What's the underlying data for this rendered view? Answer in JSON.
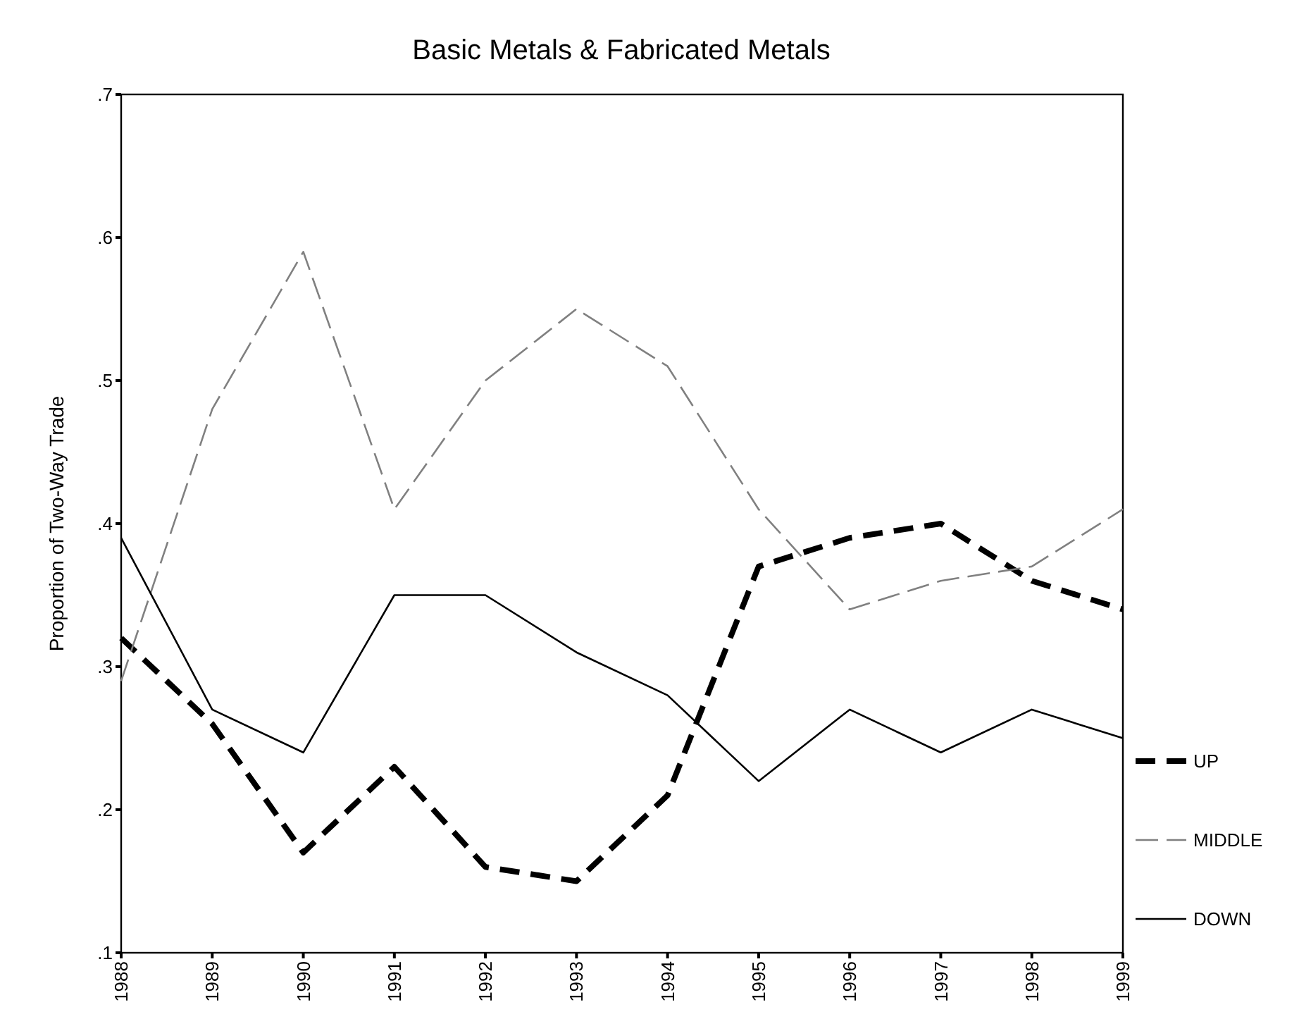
{
  "chart_data": {
    "type": "line",
    "title": "Basic Metals & Fabricated Metals",
    "ylabel": "Proportion of Two-Way Trade",
    "categories": [
      "1988",
      "1989",
      "1990",
      "1991",
      "1992",
      "1993",
      "1994",
      "1995",
      "1996",
      "1997",
      "1998",
      "1999"
    ],
    "series": [
      {
        "name": "UP",
        "color": "#000000",
        "line_style": "dashed",
        "values": [
          0.32,
          0.26,
          0.17,
          0.23,
          0.16,
          0.15,
          0.21,
          0.37,
          0.39,
          0.4,
          0.36,
          0.34
        ]
      },
      {
        "name": "MIDDLE",
        "color": "#808080",
        "line_style": "dashed",
        "values": [
          0.29,
          0.48,
          0.59,
          0.41,
          0.5,
          0.55,
          0.51,
          0.41,
          0.34,
          0.36,
          0.37,
          0.41
        ]
      },
      {
        "name": "DOWN",
        "color": "#000000",
        "line_style": "solid",
        "values": [
          0.39,
          0.27,
          0.24,
          0.35,
          0.35,
          0.31,
          0.28,
          0.22,
          0.27,
          0.24,
          0.27,
          0.25
        ]
      }
    ],
    "ylim": [
      0.1,
      0.7
    ],
    "yticks": [
      {
        "value": 0.1,
        "label": ".1"
      },
      {
        "value": 0.2,
        "label": ".2"
      },
      {
        "value": 0.3,
        "label": ".3"
      },
      {
        "value": 0.4,
        "label": ".4"
      },
      {
        "value": 0.5,
        "label": ".5"
      },
      {
        "value": 0.6,
        "label": ".6"
      },
      {
        "value": 0.7,
        "label": ".7"
      }
    ],
    "legend": "right",
    "grid": false,
    "marker": "none"
  }
}
